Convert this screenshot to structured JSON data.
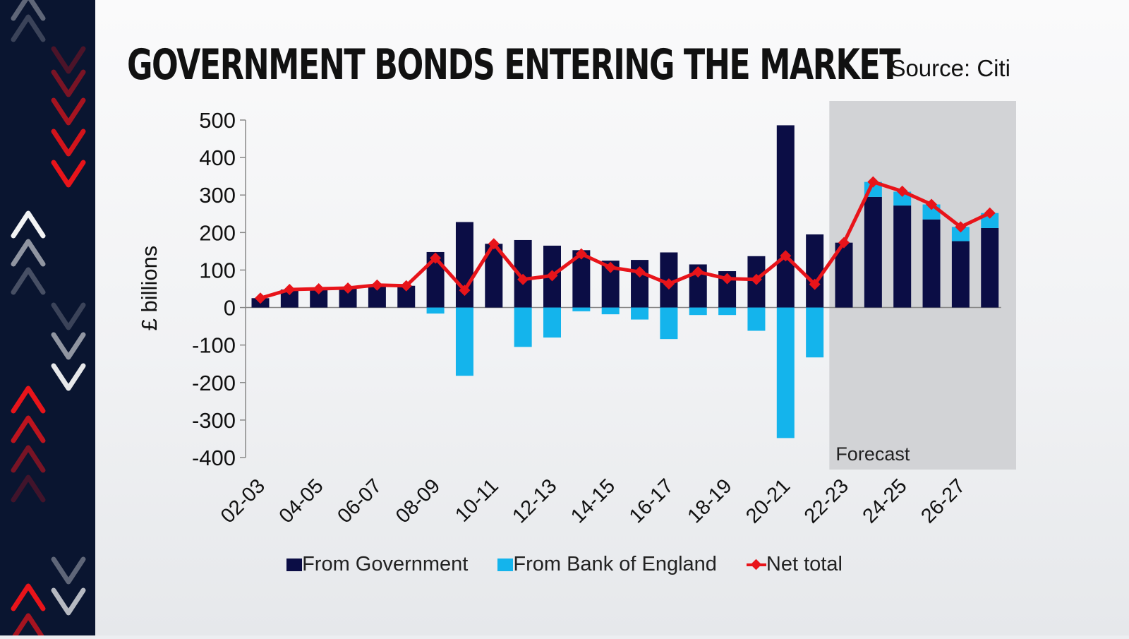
{
  "header": {
    "title": "GOVERNMENT BONDS ENTERING THE MARKET",
    "source": "Source: Citi"
  },
  "colors": {
    "sidebar": "#0a1530",
    "government": "#0b0d45",
    "bank_of_england": "#14b4ec",
    "net_total": "#e8141a",
    "forecast_shade": "#d2d3d6",
    "chevron_red": "#e8141a",
    "chevron_white": "#ffffff"
  },
  "sidebar": {
    "icon": "chevron-pattern"
  },
  "chart_data": {
    "type": "bar",
    "title": "GOVERNMENT BONDS ENTERING THE MARKET",
    "ylabel": "£ billions",
    "xlabel": "",
    "ylim": [
      -400,
      500
    ],
    "yticks": [
      500,
      400,
      300,
      200,
      100,
      0,
      -100,
      -200,
      -300,
      -400
    ],
    "grid": false,
    "stacked": true,
    "legend_position": "bottom",
    "categories": [
      "02-03",
      "03-04",
      "04-05",
      "05-06",
      "06-07",
      "07-08",
      "08-09",
      "09-10",
      "10-11",
      "11-12",
      "12-13",
      "13-14",
      "14-15",
      "15-16",
      "16-17",
      "17-18",
      "18-19",
      "19-20",
      "20-21",
      "21-22",
      "22-23",
      "23-24",
      "24-25",
      "25-26",
      "26-27",
      "27-28"
    ],
    "tick_labels": [
      "02-03",
      "04-05",
      "06-07",
      "08-09",
      "10-11",
      "12-13",
      "14-15",
      "16-17",
      "18-19",
      "20-21",
      "22-23",
      "24-25",
      "26-27"
    ],
    "series": [
      {
        "name": "From Government",
        "kind": "bar",
        "values": [
          25,
          48,
          50,
          52,
          60,
          58,
          148,
          228,
          170,
          180,
          165,
          153,
          125,
          127,
          147,
          115,
          97,
          137,
          486,
          195,
          173,
          295,
          272,
          235,
          177,
          212
        ]
      },
      {
        "name": "From Bank of England",
        "kind": "bar",
        "values": [
          0,
          0,
          0,
          0,
          0,
          0,
          -16,
          -182,
          0,
          -105,
          -80,
          -10,
          -18,
          -32,
          -84,
          -20,
          -20,
          -62,
          -348,
          -133,
          0,
          40,
          37,
          40,
          38,
          40
        ]
      },
      {
        "name": "Net total",
        "kind": "line",
        "values": [
          25,
          48,
          50,
          52,
          60,
          58,
          132,
          46,
          170,
          75,
          85,
          143,
          107,
          95,
          63,
          95,
          77,
          75,
          138,
          62,
          173,
          335,
          310,
          275,
          215,
          252
        ]
      }
    ],
    "forecast": {
      "label": "Forecast",
      "from_category": "22-23"
    }
  }
}
